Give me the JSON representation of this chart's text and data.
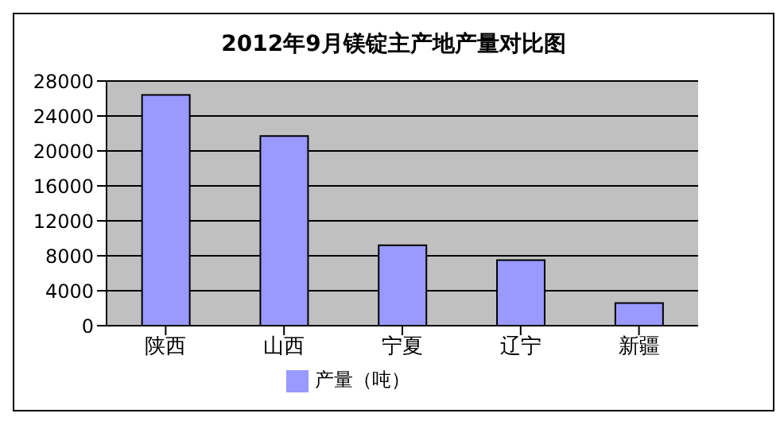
{
  "chart_data": {
    "type": "bar",
    "title": "2012年9月镁锭主产地产量对比图",
    "categories": [
      "陕西",
      "山西",
      "宁夏",
      "辽宁",
      "新疆"
    ],
    "series": [
      {
        "name": "产量（吨）",
        "color": "#9999ff",
        "values": [
          26400,
          21700,
          9200,
          7500,
          2600
        ]
      }
    ],
    "ylim": [
      0,
      28000
    ],
    "yticks": [
      0,
      4000,
      8000,
      12000,
      16000,
      20000,
      24000,
      28000
    ],
    "grid": "y",
    "legend": "bottom"
  }
}
